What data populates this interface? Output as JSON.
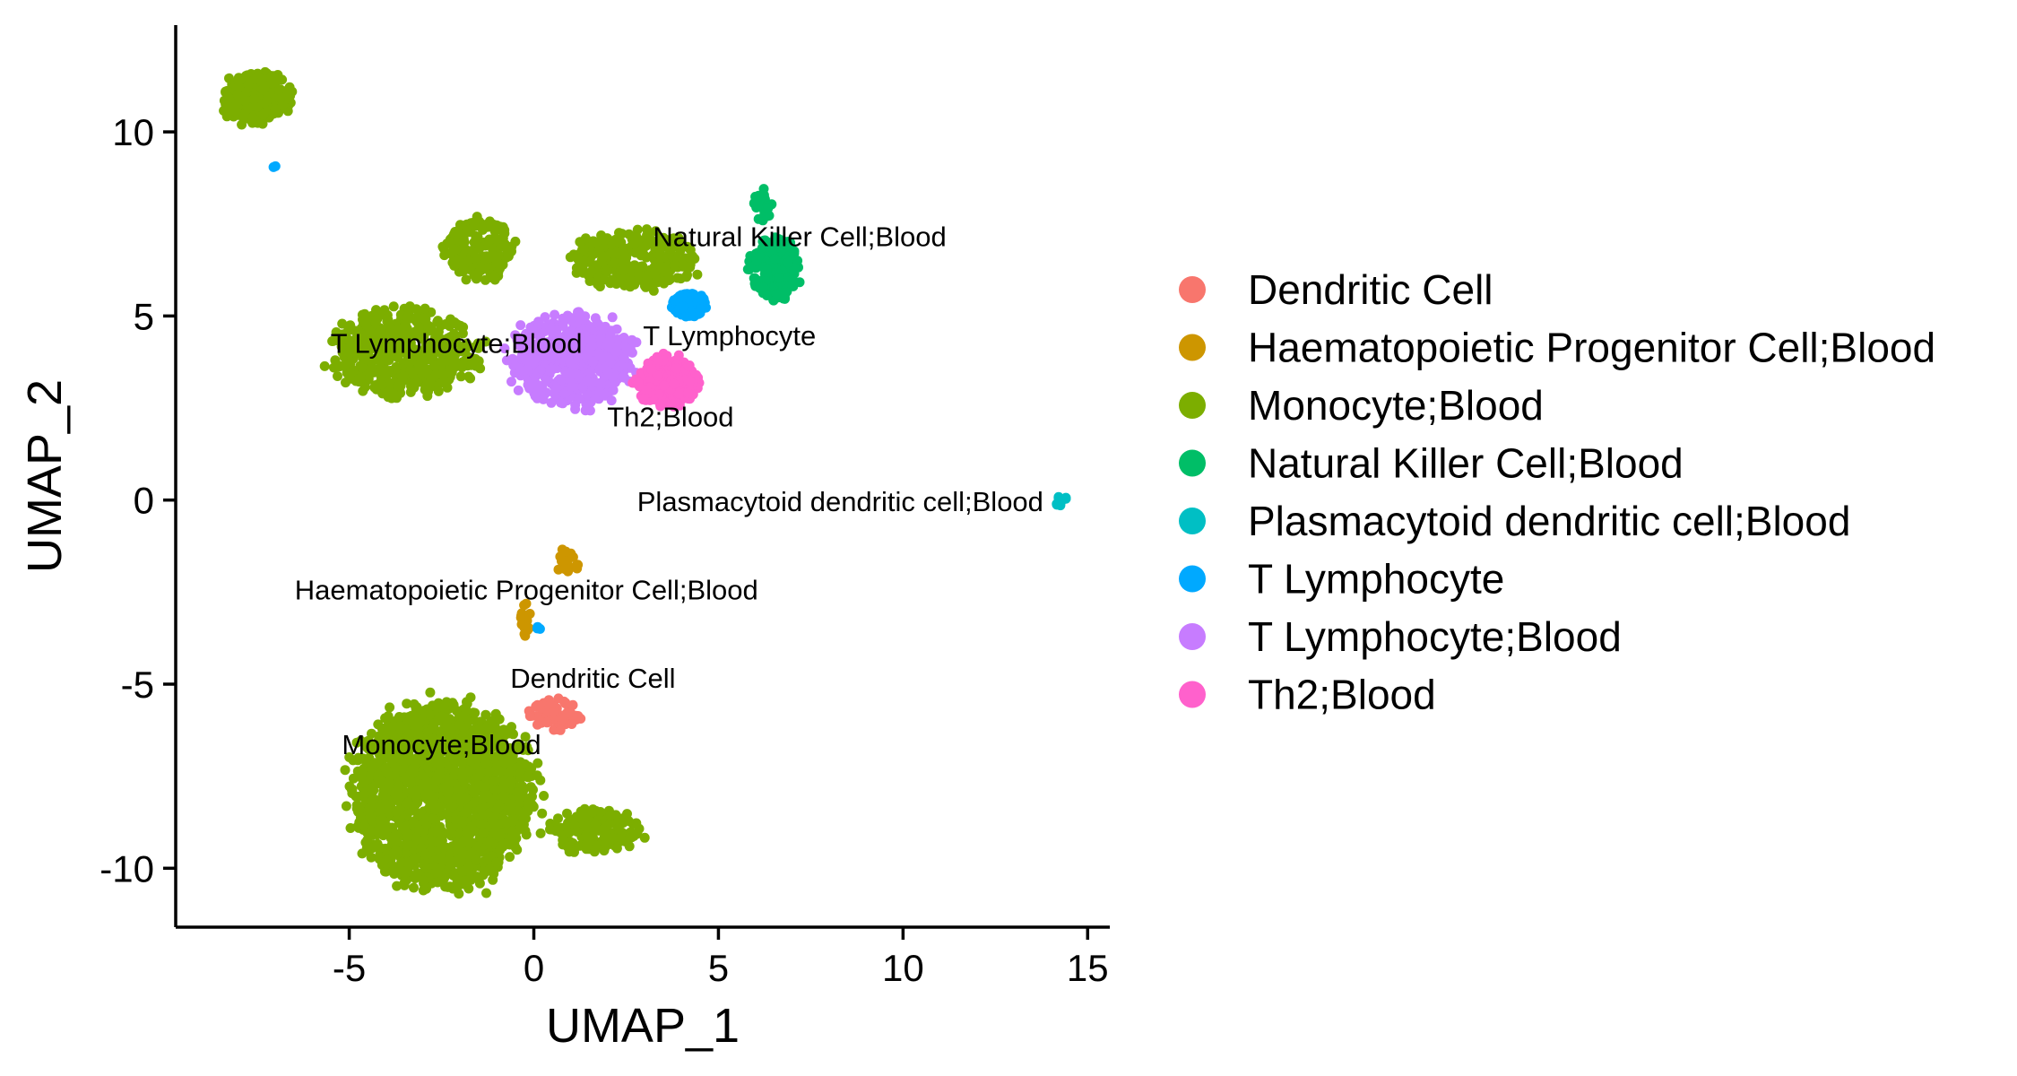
{
  "chart_data": {
    "type": "scatter",
    "xlabel": "UMAP_1",
    "ylabel": "UMAP_2",
    "xlim": [
      -9.7,
      15.6
    ],
    "ylim": [
      -11.6,
      12.9
    ],
    "x_ticks": [
      -5,
      0,
      5,
      10,
      15
    ],
    "y_ticks": [
      -10,
      -5,
      0,
      5,
      10
    ],
    "x_tick_labels": [
      "-5",
      "0",
      "5",
      "10",
      "15"
    ],
    "y_tick_labels": [
      "-10",
      "-5",
      "0",
      "5",
      "10"
    ],
    "grid": false,
    "legend_position": "right",
    "series": [
      {
        "name": "Dendritic Cell",
        "color": "#F8766D",
        "clusters": [
          {
            "cx": 0.5,
            "cy": -5.8,
            "rx": 0.7,
            "ry": 0.45,
            "n": 70
          }
        ]
      },
      {
        "name": "Haematopoietic Progenitor Cell;Blood",
        "color": "#CD9600",
        "clusters": [
          {
            "cx": 0.9,
            "cy": -1.6,
            "rx": 0.35,
            "ry": 0.35,
            "n": 18
          },
          {
            "cx": -0.2,
            "cy": -3.2,
            "rx": 0.15,
            "ry": 0.5,
            "n": 18
          }
        ]
      },
      {
        "name": "Monocyte;Blood",
        "color": "#7CAE00",
        "clusters": [
          {
            "cx": -2.5,
            "cy": -8.0,
            "rx": 2.4,
            "ry": 2.5,
            "n": 1800
          },
          {
            "cx": 1.6,
            "cy": -9.0,
            "rx": 1.3,
            "ry": 0.6,
            "n": 160
          },
          {
            "cx": -7.5,
            "cy": 10.9,
            "rx": 0.9,
            "ry": 0.7,
            "n": 350
          },
          {
            "cx": -3.5,
            "cy": 4.0,
            "rx": 2.0,
            "ry": 1.2,
            "n": 500
          },
          {
            "cx": -1.5,
            "cy": 6.8,
            "rx": 0.9,
            "ry": 0.9,
            "n": 160
          },
          {
            "cx": 2.7,
            "cy": 6.5,
            "rx": 1.7,
            "ry": 0.8,
            "n": 260
          }
        ]
      },
      {
        "name": "Natural Killer Cell;Blood",
        "color": "#00BE67",
        "clusters": [
          {
            "cx": 6.5,
            "cy": 6.3,
            "rx": 0.7,
            "ry": 0.9,
            "n": 200
          },
          {
            "cx": 6.2,
            "cy": 8.0,
            "rx": 0.25,
            "ry": 0.5,
            "n": 30
          }
        ]
      },
      {
        "name": "Plasmacytoid dendritic cell;Blood",
        "color": "#00BFC4",
        "clusters": [
          {
            "cx": 14.3,
            "cy": -0.05,
            "rx": 0.18,
            "ry": 0.15,
            "n": 10
          }
        ]
      },
      {
        "name": "T Lymphocyte",
        "color": "#00A9FF",
        "clusters": [
          {
            "cx": 4.2,
            "cy": 5.3,
            "rx": 0.5,
            "ry": 0.35,
            "n": 80
          },
          {
            "cx": -7.0,
            "cy": 9.1,
            "rx": 0.08,
            "ry": 0.08,
            "n": 2
          },
          {
            "cx": 0.1,
            "cy": -3.5,
            "rx": 0.08,
            "ry": 0.12,
            "n": 3
          }
        ]
      },
      {
        "name": "T Lymphocyte;Blood",
        "color": "#C77CFF",
        "clusters": [
          {
            "cx": 1.0,
            "cy": 3.8,
            "rx": 1.7,
            "ry": 1.3,
            "n": 500
          }
        ]
      },
      {
        "name": "Th2;Blood",
        "color": "#FF61CC",
        "clusters": [
          {
            "cx": 3.6,
            "cy": 3.2,
            "rx": 0.9,
            "ry": 0.7,
            "n": 260
          }
        ]
      }
    ],
    "annotations": [
      {
        "text": "Natural Killer Cell;Blood",
        "x": 7.2,
        "y": 7.1
      },
      {
        "text": "T Lymphocyte;Blood",
        "x": -2.1,
        "y": 4.2
      },
      {
        "text": "T Lymphocyte",
        "x": 5.3,
        "y": 4.4
      },
      {
        "text": "Th2;Blood",
        "x": 3.7,
        "y": 2.2
      },
      {
        "text": "Plasmacytoid dendritic cell;Blood",
        "x": 8.3,
        "y": -0.1
      },
      {
        "text": "Haematopoietic Progenitor Cell;Blood",
        "x": -0.2,
        "y": -2.5
      },
      {
        "text": "Dendritic Cell",
        "x": 1.6,
        "y": -4.9
      },
      {
        "text": "Monocyte;Blood",
        "x": -2.5,
        "y": -6.7
      }
    ]
  }
}
